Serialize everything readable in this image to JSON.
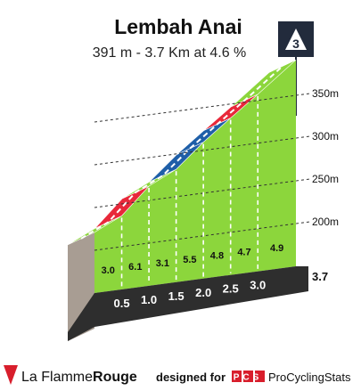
{
  "chart_data": {
    "type": "area",
    "title": "Lembah Anai",
    "subtitle": "391 m - 3.7 Km at 4.6 %",
    "category_badge": "3",
    "total_distance_label": "3.7",
    "km_marks": [
      0.5,
      1.0,
      1.5,
      2.0,
      2.5,
      3.0
    ],
    "km_labels": [
      "0.5",
      "1.0",
      "1.5",
      "2.0",
      "2.5",
      "3.0"
    ],
    "gradients": [
      3.0,
      6.1,
      3.1,
      5.5,
      4.8,
      4.7,
      4.9
    ],
    "gradient_labels": [
      "3.0",
      "6.1",
      "3.1",
      "5.5",
      "4.8",
      "4.7",
      "4.9"
    ],
    "segment_colors": [
      "green",
      "red",
      "green",
      "blue",
      "blue",
      "red",
      "green"
    ],
    "y_ticks": [
      200,
      250,
      300,
      350
    ],
    "y_tick_labels": [
      "200m",
      "250m",
      "300m",
      "350m"
    ],
    "ylim": [
      150,
      400
    ],
    "xlim": [
      0,
      3.7
    ]
  },
  "colors": {
    "green": "#8cd63c",
    "red": "#e8283a",
    "blue": "#1f5fa8",
    "base": "#2e2e2e",
    "wall": "#a89d93",
    "badge": "#222b3c"
  },
  "footer": {
    "brand_plain": "La Flamme",
    "brand_bold": "Rouge",
    "designed_for": "designed for",
    "pcs_logo": "PCS",
    "pcs_text": "ProCyclingStats"
  }
}
